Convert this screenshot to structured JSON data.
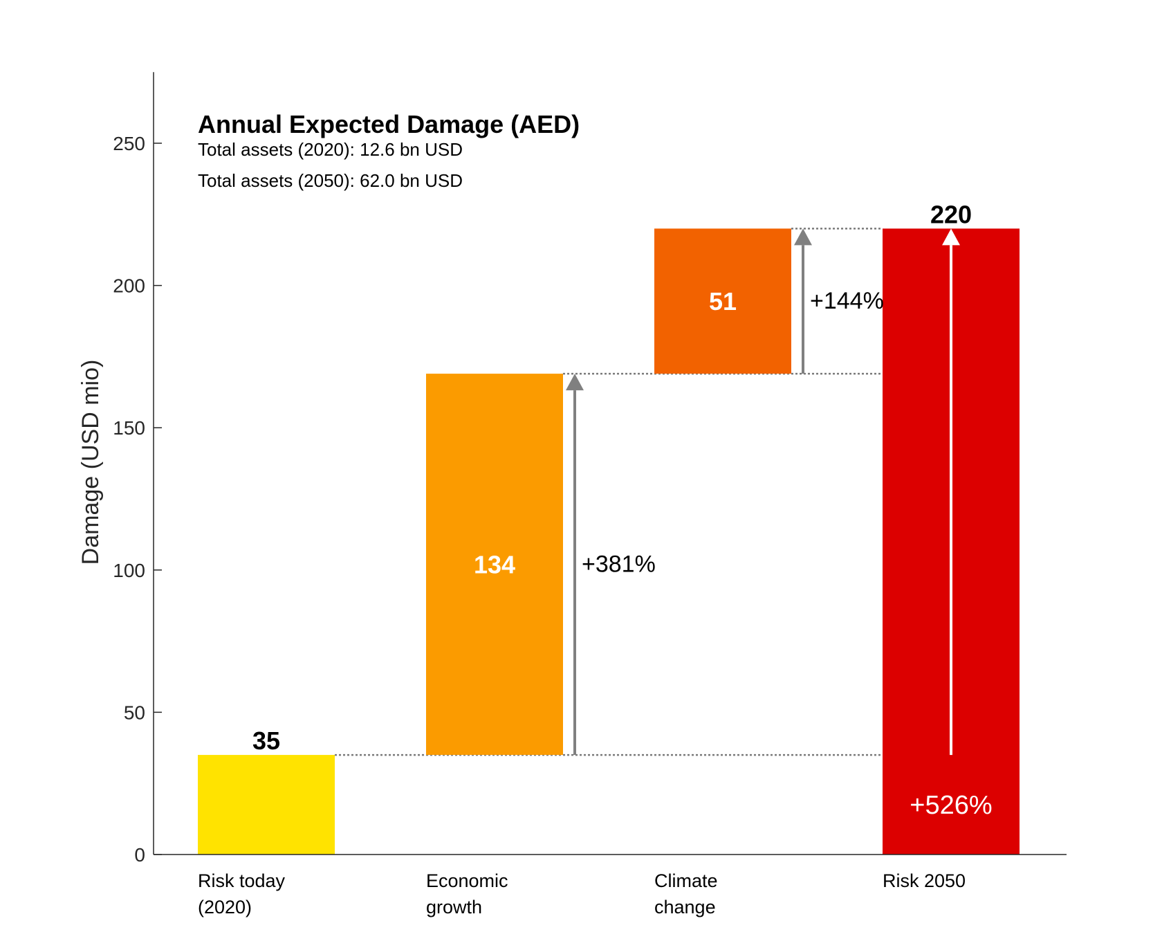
{
  "chart_data": {
    "type": "bar",
    "subtype": "waterfall",
    "title": "Annual Expected Damage (AED)",
    "subtitle_lines": [
      "Total assets (2020): 12.6 bn USD",
      "Total assets (2050): 62.0 bn USD"
    ],
    "ylabel": "Damage (USD mio)",
    "xlabel": "",
    "ylim": [
      0,
      275
    ],
    "yticks": [
      0,
      50,
      100,
      150,
      200,
      250
    ],
    "grid": false,
    "bars": [
      {
        "category_lines": [
          "Risk today",
          "(2020)"
        ],
        "base": 0,
        "value": 35,
        "color": "#FFE300",
        "label": "35",
        "label_position": "above",
        "label_color": "#000000"
      },
      {
        "category_lines": [
          "Economic",
          "growth"
        ],
        "base": 35,
        "value": 134,
        "color": "#FB9B00",
        "label": "134",
        "label_position": "inside",
        "label_color": "#FFFFFF"
      },
      {
        "category_lines": [
          "Climate",
          "change"
        ],
        "base": 169,
        "value": 51,
        "color": "#F26200",
        "label": "51",
        "label_position": "inside",
        "label_color": "#FFFFFF"
      },
      {
        "category_lines": [
          "Risk 2050"
        ],
        "base": 0,
        "value": 220,
        "color": "#DC0000",
        "label": "220",
        "label_position": "above",
        "label_color": "#000000"
      }
    ],
    "arrows": [
      {
        "after_bar": 1,
        "from": 35,
        "to": 169,
        "label": "+381%",
        "color": "#808080",
        "label_color": "#000000"
      },
      {
        "after_bar": 2,
        "from": 169,
        "to": 220,
        "label": "+144%",
        "color": "#808080",
        "label_color": "#000000"
      },
      {
        "inside_bar": 3,
        "from": 35,
        "to": 220,
        "label": "+526%",
        "color": "#FFFFFF",
        "label_color": "#FFFFFF"
      }
    ],
    "connectors": [
      {
        "level": 35,
        "from_bar": 0,
        "to_bar": 3
      },
      {
        "level": 169,
        "from_bar": 1,
        "to_bar": 3
      },
      {
        "level": 220,
        "from_bar": 2,
        "to_bar": 3
      }
    ]
  }
}
